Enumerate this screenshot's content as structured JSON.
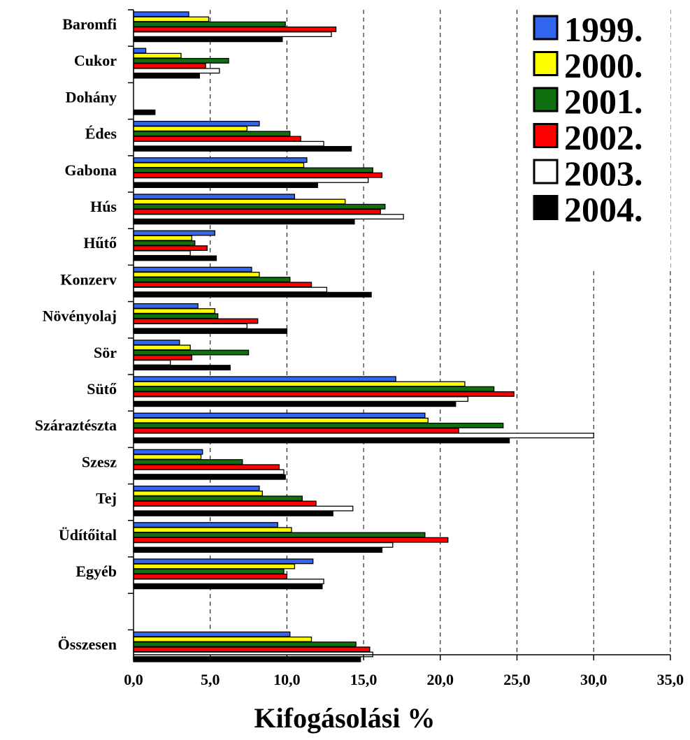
{
  "chart_data": {
    "type": "bar",
    "orientation": "horizontal",
    "categories": [
      "Baromfi",
      "Cukor",
      "Dohány",
      "Édes",
      "Gabona",
      "Hús",
      "Hűtő",
      "Konzerv",
      "Növényolaj",
      "Sör",
      "Sütő",
      "Száraztészta",
      "Szesz",
      "Tej",
      "Üdítőital",
      "Egyéb",
      "",
      "Összesen"
    ],
    "series": [
      {
        "name": "1999.",
        "color": "#3366ee",
        "values": [
          3.6,
          0.8,
          0,
          8.2,
          11.3,
          10.5,
          5.3,
          7.7,
          4.2,
          3.0,
          17.1,
          19.0,
          4.5,
          8.2,
          9.4,
          11.7,
          null,
          10.2
        ]
      },
      {
        "name": "2000.",
        "color": "#ffff00",
        "values": [
          4.9,
          3.1,
          0,
          7.4,
          11.1,
          13.8,
          3.8,
          8.2,
          5.3,
          3.7,
          21.6,
          19.2,
          4.4,
          8.4,
          10.3,
          10.5,
          null,
          11.6
        ]
      },
      {
        "name": "2001.",
        "color": "#107010",
        "values": [
          9.9,
          6.2,
          0,
          10.2,
          15.6,
          16.4,
          4.0,
          10.2,
          5.5,
          7.5,
          23.5,
          24.1,
          7.1,
          11.0,
          19.0,
          9.8,
          null,
          14.5
        ]
      },
      {
        "name": "2002.",
        "color": "#ff0000",
        "values": [
          13.2,
          4.7,
          0,
          10.9,
          16.2,
          16.1,
          4.8,
          11.6,
          8.1,
          3.8,
          24.8,
          21.2,
          9.5,
          11.9,
          20.5,
          10.0,
          null,
          15.4
        ]
      },
      {
        "name": "2003.",
        "color": "#ffffff",
        "values": [
          12.9,
          5.6,
          0,
          12.4,
          15.3,
          17.6,
          3.7,
          12.6,
          7.4,
          2.4,
          21.8,
          30.0,
          9.8,
          14.3,
          16.9,
          12.4,
          null,
          15.6
        ]
      },
      {
        "name": "2004.",
        "color": "#000000",
        "values": [
          9.7,
          4.3,
          1.4,
          14.2,
          12.0,
          14.4,
          5.4,
          15.5,
          10.0,
          6.3,
          21.0,
          24.5,
          9.9,
          13.0,
          16.2,
          12.3,
          null,
          14.8
        ]
      }
    ],
    "xlim": [
      0,
      35
    ],
    "xticks": [
      "0,0",
      "5,0",
      "10,0",
      "15,0",
      "20,0",
      "25,0",
      "30,0",
      "35,0"
    ],
    "xticks_values": [
      0,
      5,
      10,
      15,
      20,
      25,
      30,
      35
    ],
    "xlabel": "Kifogásolási %",
    "ylabel": "",
    "grid": "vertical dashed",
    "legend": "top-right"
  }
}
